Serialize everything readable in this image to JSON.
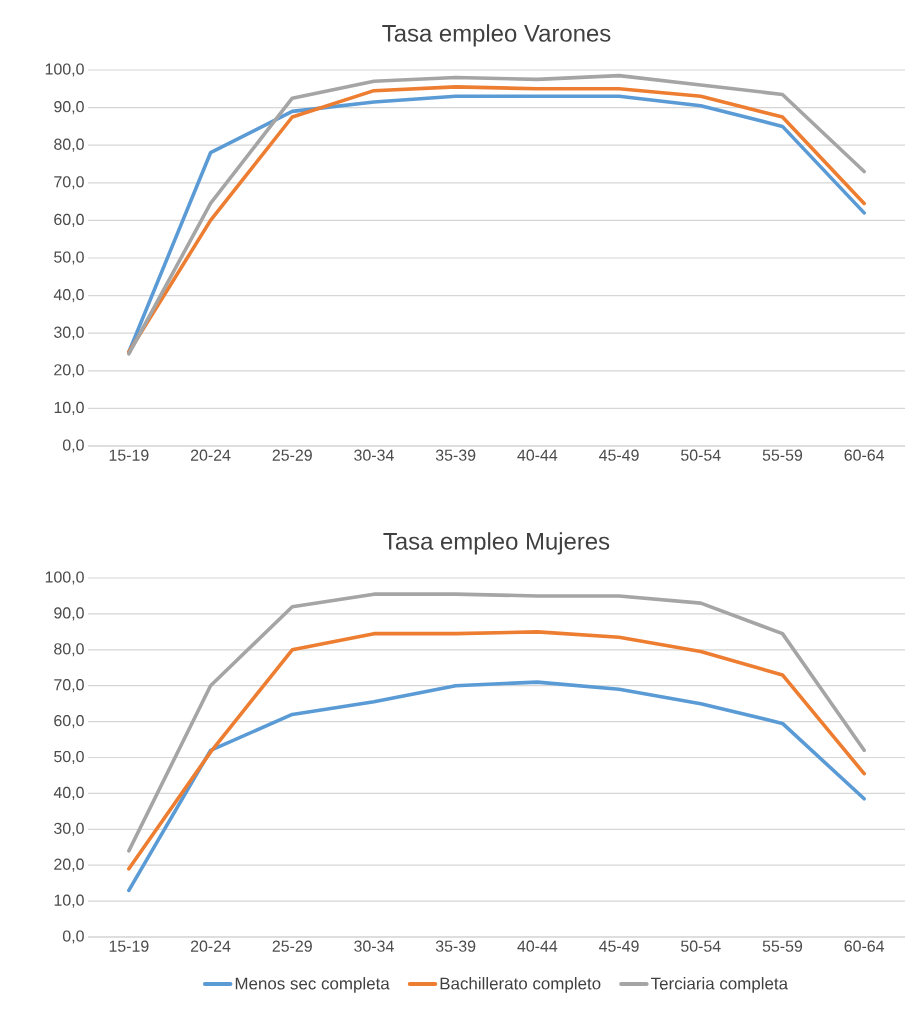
{
  "chart_data": [
    {
      "type": "line",
      "title": "Tasa empleo Varones",
      "categories": [
        "15-19",
        "20-24",
        "25-29",
        "30-34",
        "35-39",
        "40-44",
        "45-49",
        "50-54",
        "55-59",
        "60-64"
      ],
      "series": [
        {
          "color": "#5b9bd5",
          "values": [
            25,
            78,
            89,
            91.5,
            93,
            93,
            93,
            90.5,
            85,
            62
          ]
        },
        {
          "color": "#ed7d31",
          "values": [
            25,
            60,
            87.5,
            94.5,
            95.5,
            95,
            95,
            93,
            87.5,
            64.5
          ]
        },
        {
          "color": "#a5a5a5",
          "values": [
            24.5,
            64.5,
            92.5,
            97,
            98,
            97.5,
            98.5,
            96,
            93.5,
            73
          ]
        }
      ],
      "ylim": [
        0,
        100
      ],
      "yticks": [
        {
          "value": 0,
          "label": "0,0"
        },
        {
          "value": 10,
          "label": "10,0"
        },
        {
          "value": 20,
          "label": "20,0"
        },
        {
          "value": 30,
          "label": "30,0"
        },
        {
          "value": 40,
          "label": "40,0"
        },
        {
          "value": 50,
          "label": "50,0"
        },
        {
          "value": 60,
          "label": "60,0"
        },
        {
          "value": 70,
          "label": "70,0"
        },
        {
          "value": 80,
          "label": "80,0"
        },
        {
          "value": 90,
          "label": "90,0"
        },
        {
          "value": 100,
          "label": "100,0"
        }
      ],
      "grid": "y"
    },
    {
      "type": "line",
      "title": "Tasa empleo Mujeres",
      "categories": [
        "15-19",
        "20-24",
        "25-29",
        "30-34",
        "35-39",
        "40-44",
        "45-49",
        "50-54",
        "55-59",
        "60-64"
      ],
      "series": [
        {
          "name": "Menos sec completa",
          "color": "#5b9bd5",
          "values": [
            13,
            52,
            62,
            65.5,
            70,
            71,
            69,
            65,
            59.5,
            38.5
          ]
        },
        {
          "name": "Bachillerato completo",
          "color": "#ed7d31",
          "values": [
            19,
            51.5,
            80,
            84.5,
            84.5,
            85,
            83.5,
            79.5,
            73,
            45.5
          ]
        },
        {
          "name": "Terciaria completa",
          "color": "#a5a5a5",
          "values": [
            24,
            70,
            92,
            95.5,
            95.5,
            95,
            95,
            93,
            84.5,
            52
          ]
        }
      ],
      "ylim": [
        0,
        100
      ],
      "yticks": [
        {
          "value": 0,
          "label": "0,0"
        },
        {
          "value": 10,
          "label": "10,0"
        },
        {
          "value": 20,
          "label": "20,0"
        },
        {
          "value": 30,
          "label": "30,0"
        },
        {
          "value": 40,
          "label": "40,0"
        },
        {
          "value": 50,
          "label": "50,0"
        },
        {
          "value": 60,
          "label": "60,0"
        },
        {
          "value": 70,
          "label": "70,0"
        },
        {
          "value": 80,
          "label": "80,0"
        },
        {
          "value": 90,
          "label": "90,0"
        },
        {
          "value": 100,
          "label": "100,0"
        }
      ],
      "grid": "y",
      "legend": "bottom"
    }
  ]
}
